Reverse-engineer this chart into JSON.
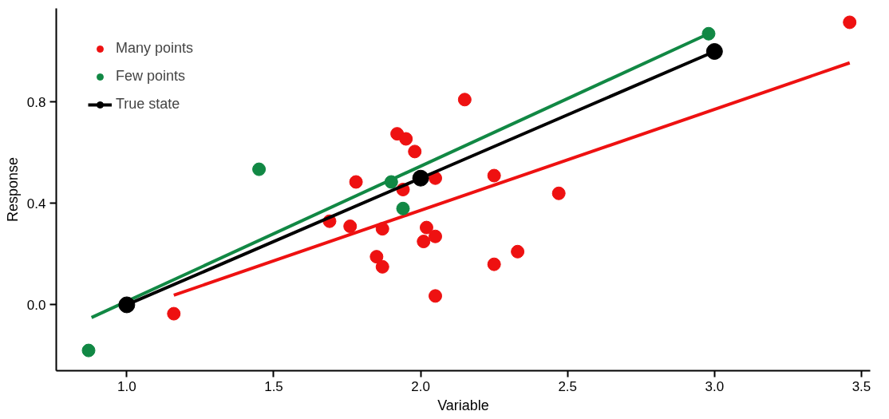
{
  "chart_data": {
    "type": "scatter",
    "xlabel": "Variable",
    "ylabel": "Response",
    "xlim": [
      0.76,
      3.53
    ],
    "ylim": [
      -0.26,
      1.17
    ],
    "xticks": [
      {
        "value": 1.0,
        "label": "1.0"
      },
      1.5,
      {
        "value": 2.0,
        "label": "2.0"
      },
      2.5,
      {
        "value": 3.0,
        "label": "3.0"
      },
      3.5
    ],
    "yticks": [
      {
        "value": 0.0,
        "label": "0.0"
      },
      0.4,
      0.8
    ],
    "grid": false,
    "legend": "top left",
    "marker": "circle",
    "series": [
      {
        "name": "Many points",
        "color": "#ee1111",
        "x": [
          1.16,
          1.69,
          1.76,
          1.78,
          1.87,
          1.85,
          1.87,
          1.92,
          1.95,
          1.98,
          1.94,
          2.05,
          2.02,
          2.01,
          2.05,
          2.05,
          2.15,
          2.25,
          2.25,
          2.33,
          2.47,
          3.46
        ],
        "values": [
          -0.035,
          0.33,
          0.31,
          0.485,
          0.3,
          0.19,
          0.15,
          0.675,
          0.655,
          0.605,
          0.455,
          0.5,
          0.305,
          0.25,
          0.27,
          0.035,
          0.81,
          0.51,
          0.16,
          0.21,
          0.44,
          1.115
        ]
      },
      {
        "type": "line",
        "marker": "none",
        "color": "#ee1111",
        "x": [
          1.16,
          3.46
        ],
        "values": [
          0.038,
          0.955
        ]
      },
      {
        "name": "Few points",
        "color": "#118844",
        "x": [
          0.87,
          1.45,
          1.9,
          1.94,
          2.98
        ],
        "values": [
          -0.18,
          0.535,
          0.485,
          0.38,
          1.07
        ]
      },
      {
        "type": "line",
        "marker": "none",
        "color": "#118844",
        "x": [
          0.88,
          2.98
        ],
        "values": [
          -0.05,
          1.07
        ]
      },
      {
        "name": "True state",
        "type": "line",
        "marker": "circle",
        "color": "#000000",
        "x": [
          1,
          2,
          3
        ],
        "values": [
          0,
          0.5,
          1
        ]
      }
    ]
  }
}
